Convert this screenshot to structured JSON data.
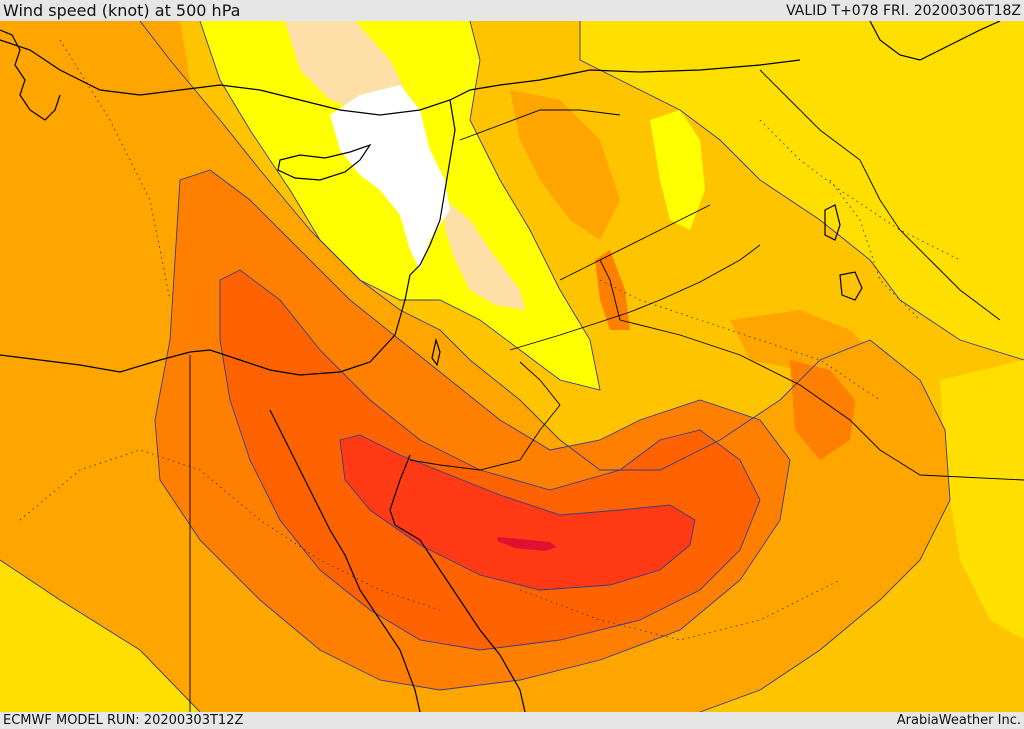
{
  "header": {
    "title": "Wind speed (knot) at 500 hPa",
    "valid": "VALID T+078 FRI. 20200306T18Z"
  },
  "footer": {
    "model_run": "ECMWF MODEL RUN: 20200303T12Z",
    "provider": "ArabiaWeather Inc."
  },
  "palette": {
    "band_lowest": "#ffffff",
    "band_1": "#fde0a8",
    "band_2": "#ffff00",
    "band_3": "#ffdf00",
    "band_4": "#ffc400",
    "band_5": "#ffa500",
    "band_6": "#ff8000",
    "band_7": "#ff6200",
    "band_8": "#ff3a14",
    "band_max": "#e01030",
    "contour_line": "#3a3a8a",
    "coastline": "#000000"
  }
}
